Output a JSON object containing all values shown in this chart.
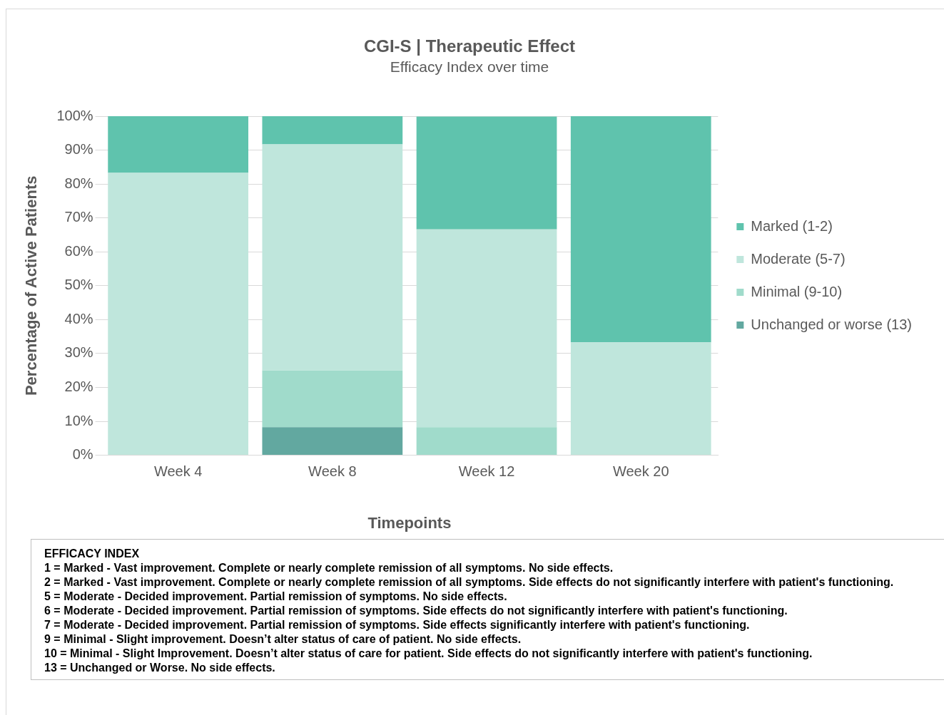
{
  "chart_data": {
    "type": "bar",
    "title": "CGI-S | Therapeutic Effect",
    "subtitle": "Efficacy Index over time",
    "xlabel": "Timepoints",
    "ylabel": "Percentage of Active Patients",
    "categories": [
      "Week 4",
      "Week 8",
      "Week 12",
      "Week 20"
    ],
    "series": [
      {
        "name": "Unchanged or worse (13)",
        "color": "#62a8a0",
        "values": [
          0,
          8.3,
          0,
          0
        ]
      },
      {
        "name": "Minimal (9-10)",
        "color": "#a0dbcb",
        "values": [
          0,
          16.7,
          8.3,
          0
        ]
      },
      {
        "name": "Moderate (5-7)",
        "color": "#bfe6dc",
        "values": [
          83.3,
          66.7,
          58.3,
          33.3
        ]
      },
      {
        "name": "Marked (1-2)",
        "color": "#5fc3ad",
        "values": [
          16.7,
          8.3,
          33.3,
          66.7
        ]
      }
    ],
    "stacked": true,
    "ylim": [
      0,
      100
    ],
    "yticks": [
      {
        "value": 0,
        "label": "0%"
      },
      {
        "value": 10,
        "label": "10%"
      },
      {
        "value": 20,
        "label": "20%"
      },
      {
        "value": 30,
        "label": "30%"
      },
      {
        "value": 40,
        "label": "40%"
      },
      {
        "value": 50,
        "label": "50%"
      },
      {
        "value": 60,
        "label": "60%"
      },
      {
        "value": 70,
        "label": "70%"
      },
      {
        "value": 80,
        "label": "80%"
      },
      {
        "value": 90,
        "label": "90%"
      },
      {
        "value": 100,
        "label": "100%"
      }
    ],
    "grid": "y",
    "legend": "right",
    "annotations": [
      "EFFICACY INDEX",
      "1 = Marked - Vast improvement. Complete or nearly complete remission of all symptoms. No side effects.",
      "2 = Marked - Vast improvement. Complete or nearly complete remission of all symptoms. Side effects do not significantly interfere with patient's functioning.",
      "5 = Moderate - Decided improvement. Partial remission of symptoms. No side effects.",
      "6 = Moderate - Decided improvement. Partial remission of symptoms. Side effects do not significantly interfere with patient's functioning.",
      "7 = Moderate - Decided improvement. Partial remission of symptoms. Side effects significantly interfere with patient's functioning.",
      "9 = Minimal - Slight improvement. Doesn’t alter status of care of patient. No side effects.",
      "10 = Minimal - Slight Improvement. Doesn’t alter status of care for patient. Side effects do not significantly interfere with patient's functioning.",
      "13 = Unchanged or Worse. No side effects."
    ]
  }
}
